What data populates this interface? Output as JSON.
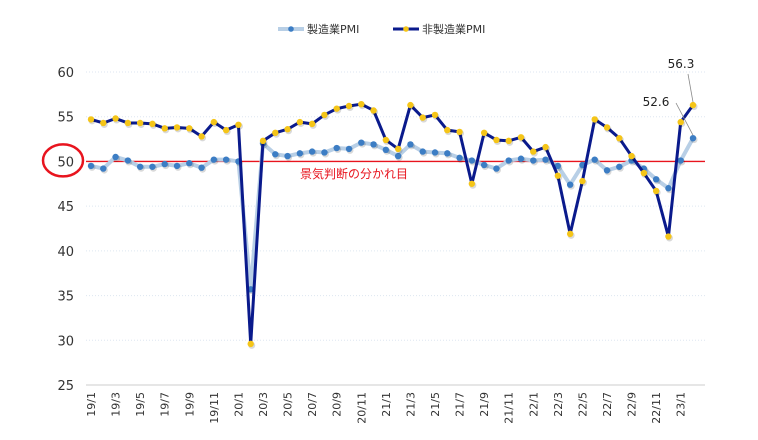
{
  "chart_data": {
    "type": "line",
    "title": "",
    "xlabel": "",
    "ylabel": "",
    "ylim": [
      25,
      60
    ],
    "yticks": [
      25,
      30,
      35,
      40,
      45,
      50,
      55,
      60
    ],
    "x": [
      "19/1",
      "19/2",
      "19/3",
      "19/4",
      "19/5",
      "19/6",
      "19/7",
      "19/8",
      "19/9",
      "19/10",
      "19/11",
      "19/12",
      "20/1",
      "20/2",
      "20/3",
      "20/4",
      "20/5",
      "20/6",
      "20/7",
      "20/8",
      "20/9",
      "20/10",
      "20/11",
      "20/12",
      "21/1",
      "21/2",
      "21/3",
      "21/4",
      "21/5",
      "21/6",
      "21/7",
      "21/8",
      "21/9",
      "21/10",
      "21/11",
      "21/12",
      "22/1",
      "22/2",
      "22/3",
      "22/4",
      "22/5",
      "22/6",
      "22/7",
      "22/8",
      "22/9",
      "22/10",
      "22/11",
      "22/12",
      "23/1",
      "23/2"
    ],
    "xtick_labels": [
      "19/1",
      "19/3",
      "19/5",
      "19/7",
      "19/9",
      "19/11",
      "20/1",
      "20/3",
      "20/5",
      "20/7",
      "20/9",
      "20/11",
      "21/1",
      "21/3",
      "21/5",
      "21/7",
      "21/9",
      "21/11",
      "22/1",
      "22/3",
      "22/5",
      "22/7",
      "22/9",
      "22/11",
      "23/1"
    ],
    "legend_position": "top-center",
    "grid": true,
    "series": [
      {
        "name": "製造業PMI",
        "line_color": "#b8cfe6",
        "marker_color": "#3c7dc4",
        "values": [
          49.5,
          49.2,
          50.5,
          50.1,
          49.4,
          49.4,
          49.7,
          49.5,
          49.8,
          49.3,
          50.2,
          50.2,
          50.0,
          35.7,
          52.0,
          50.8,
          50.6,
          50.9,
          51.1,
          51.0,
          51.5,
          51.4,
          52.1,
          51.9,
          51.3,
          50.6,
          51.9,
          51.1,
          51.0,
          50.9,
          50.4,
          50.1,
          49.6,
          49.2,
          50.1,
          50.3,
          50.1,
          50.2,
          49.5,
          47.4,
          49.6,
          50.2,
          49.0,
          49.4,
          50.1,
          49.2,
          48.0,
          47.0,
          50.1,
          52.6
        ]
      },
      {
        "name": "非製造業PMI",
        "line_color": "#0a1a8c",
        "marker_color": "#f5c518",
        "values": [
          54.7,
          54.3,
          54.8,
          54.3,
          54.3,
          54.2,
          53.7,
          53.8,
          53.7,
          52.8,
          54.4,
          53.5,
          54.1,
          29.6,
          52.3,
          53.2,
          53.6,
          54.4,
          54.2,
          55.2,
          55.9,
          56.2,
          56.4,
          55.7,
          52.4,
          51.4,
          56.3,
          54.9,
          55.2,
          53.5,
          53.3,
          47.5,
          53.2,
          52.4,
          52.3,
          52.7,
          51.1,
          51.6,
          48.4,
          41.9,
          47.8,
          54.7,
          53.8,
          52.6,
          50.6,
          48.7,
          46.7,
          41.6,
          54.4,
          56.3
        ]
      }
    ],
    "reference_line": {
      "value": 50,
      "label": "景気判断の分かれ目",
      "color": "#e8141e"
    },
    "annotations": [
      {
        "text": "56.3",
        "series": "非製造業PMI",
        "x": "23/2"
      },
      {
        "text": "52.6",
        "series": "製造業PMI",
        "x": "23/2"
      }
    ]
  }
}
